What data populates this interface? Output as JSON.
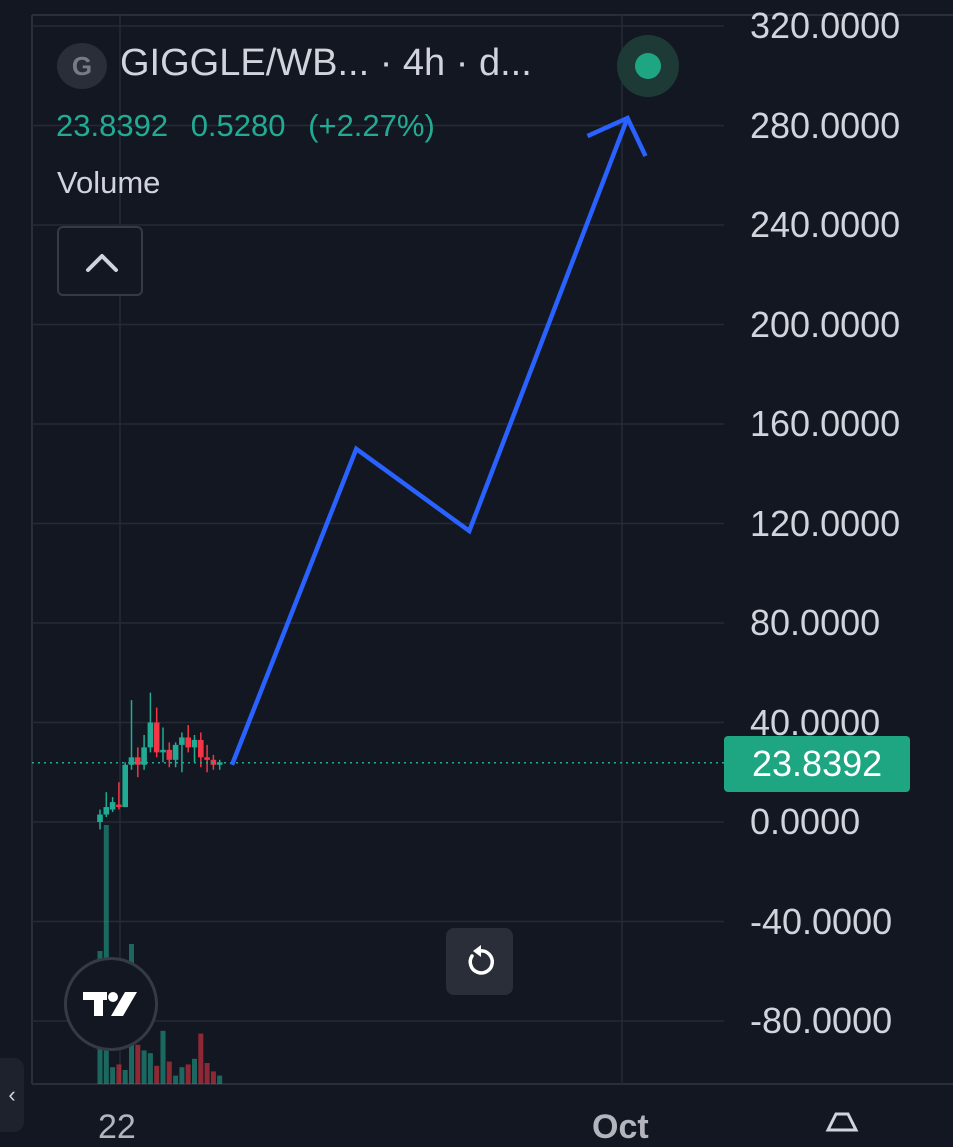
{
  "header": {
    "symbol_badge": "G",
    "title": "GIGGLE/WB...  · 4h · d...",
    "last_price": "23.8392",
    "change": "0.5280",
    "change_pct": "(+2.27%)",
    "status_icon": "live-status-dot-icon"
  },
  "volume_label": "Volume",
  "collapse_icon": "chevron-up-icon",
  "price_axis": {
    "labels": [
      "320.0000",
      "280.0000",
      "240.0000",
      "200.0000",
      "160.0000",
      "120.0000",
      "80.0000",
      "40.0000",
      "0.0000",
      "-40.0000",
      "-80.0000"
    ],
    "current_price_tag": "23.8392"
  },
  "time_axis": {
    "labels": [
      "22",
      "Oct"
    ]
  },
  "colors": {
    "up": "#22ab94",
    "down": "#f23645",
    "drawing": "#2962ff",
    "background": "#131722",
    "price_tag": "#1ea683"
  },
  "chart_data": {
    "type": "candlestick",
    "interval": "4h",
    "ylim": [
      -100,
      330
    ],
    "grid": true,
    "current_price": 23.8392,
    "candles": [
      {
        "o": 0,
        "h": 5,
        "l": -3,
        "c": 3
      },
      {
        "o": 3,
        "h": 12,
        "l": 2,
        "c": 6
      },
      {
        "o": 5,
        "h": 10,
        "l": 4,
        "c": 8
      },
      {
        "o": 7,
        "h": 16,
        "l": 5,
        "c": 6
      },
      {
        "o": 6,
        "h": 24,
        "l": 6,
        "c": 23
      },
      {
        "o": 23,
        "h": 49,
        "l": 21,
        "c": 26
      },
      {
        "o": 26,
        "h": 30,
        "l": 18,
        "c": 23
      },
      {
        "o": 23,
        "h": 35,
        "l": 21,
        "c": 30
      },
      {
        "o": 30,
        "h": 52,
        "l": 28,
        "c": 40
      },
      {
        "o": 40,
        "h": 46,
        "l": 26,
        "c": 28
      },
      {
        "o": 28,
        "h": 38,
        "l": 24,
        "c": 29
      },
      {
        "o": 29,
        "h": 32,
        "l": 22,
        "c": 25
      },
      {
        "o": 25,
        "h": 32,
        "l": 22,
        "c": 31
      },
      {
        "o": 31,
        "h": 36,
        "l": 20,
        "c": 34
      },
      {
        "o": 34,
        "h": 39,
        "l": 28,
        "c": 30
      },
      {
        "o": 30,
        "h": 35,
        "l": 24,
        "c": 33
      },
      {
        "o": 33,
        "h": 36,
        "l": 22,
        "c": 26
      },
      {
        "o": 26,
        "h": 31,
        "l": 20,
        "c": 25
      },
      {
        "o": 25,
        "h": 27,
        "l": 21,
        "c": 23
      },
      {
        "o": 23,
        "h": 25,
        "l": 21,
        "c": 24
      }
    ],
    "volume": [
      95,
      185,
      12,
      14,
      10,
      100,
      28,
      24,
      22,
      13,
      38,
      16,
      6,
      12,
      14,
      18,
      36,
      15,
      9,
      6
    ],
    "projection_path": [
      {
        "bar": 19,
        "price": 23
      },
      {
        "bar": 30,
        "price": 150
      },
      {
        "bar": 40,
        "price": 117
      },
      {
        "bar": 54,
        "price": 283
      }
    ]
  }
}
